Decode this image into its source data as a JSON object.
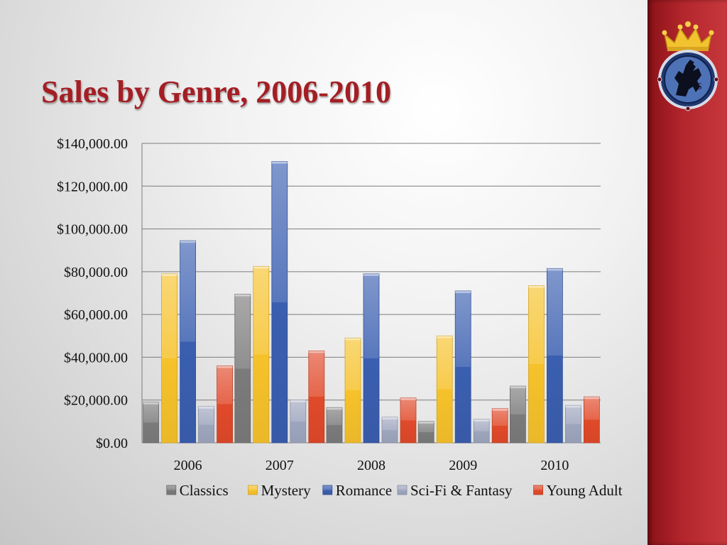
{
  "slide": {
    "title": "Sales by Genre, 2006-2010",
    "logo_icon": "griffin-crest-icon"
  },
  "colors": {
    "sidebar": "#b3262c",
    "title": "#a41e24",
    "Classics": "#7b7b7b",
    "Mystery": "#f6c22b",
    "Romance": "#3b5fb0",
    "Sci-Fi & Fantasy": "#9ea6be",
    "Young Adult": "#e04a2a"
  },
  "chart_data": {
    "type": "bar",
    "title": "",
    "xlabel": "",
    "ylabel": "",
    "categories": [
      "2006",
      "2007",
      "2008",
      "2009",
      "2010"
    ],
    "series": [
      {
        "name": "Classics",
        "values": [
          19000,
          69500,
          16500,
          10000,
          26500
        ]
      },
      {
        "name": "Mystery",
        "values": [
          79000,
          82500,
          49000,
          50000,
          73500
        ]
      },
      {
        "name": "Romance",
        "values": [
          94500,
          131500,
          79000,
          71000,
          81500
        ]
      },
      {
        "name": "Sci-Fi & Fantasy",
        "values": [
          17000,
          20000,
          12000,
          11000,
          17500
        ]
      },
      {
        "name": "Young Adult",
        "values": [
          36000,
          43000,
          21000,
          16000,
          21500
        ]
      }
    ],
    "ylim": [
      0,
      140000
    ],
    "yticks": [
      "$0.00",
      "$20,000.00",
      "$40,000.00",
      "$60,000.00",
      "$80,000.00",
      "$100,000.00",
      "$120,000.00",
      "$140,000.00"
    ],
    "grid": true,
    "legend_position": "bottom"
  }
}
